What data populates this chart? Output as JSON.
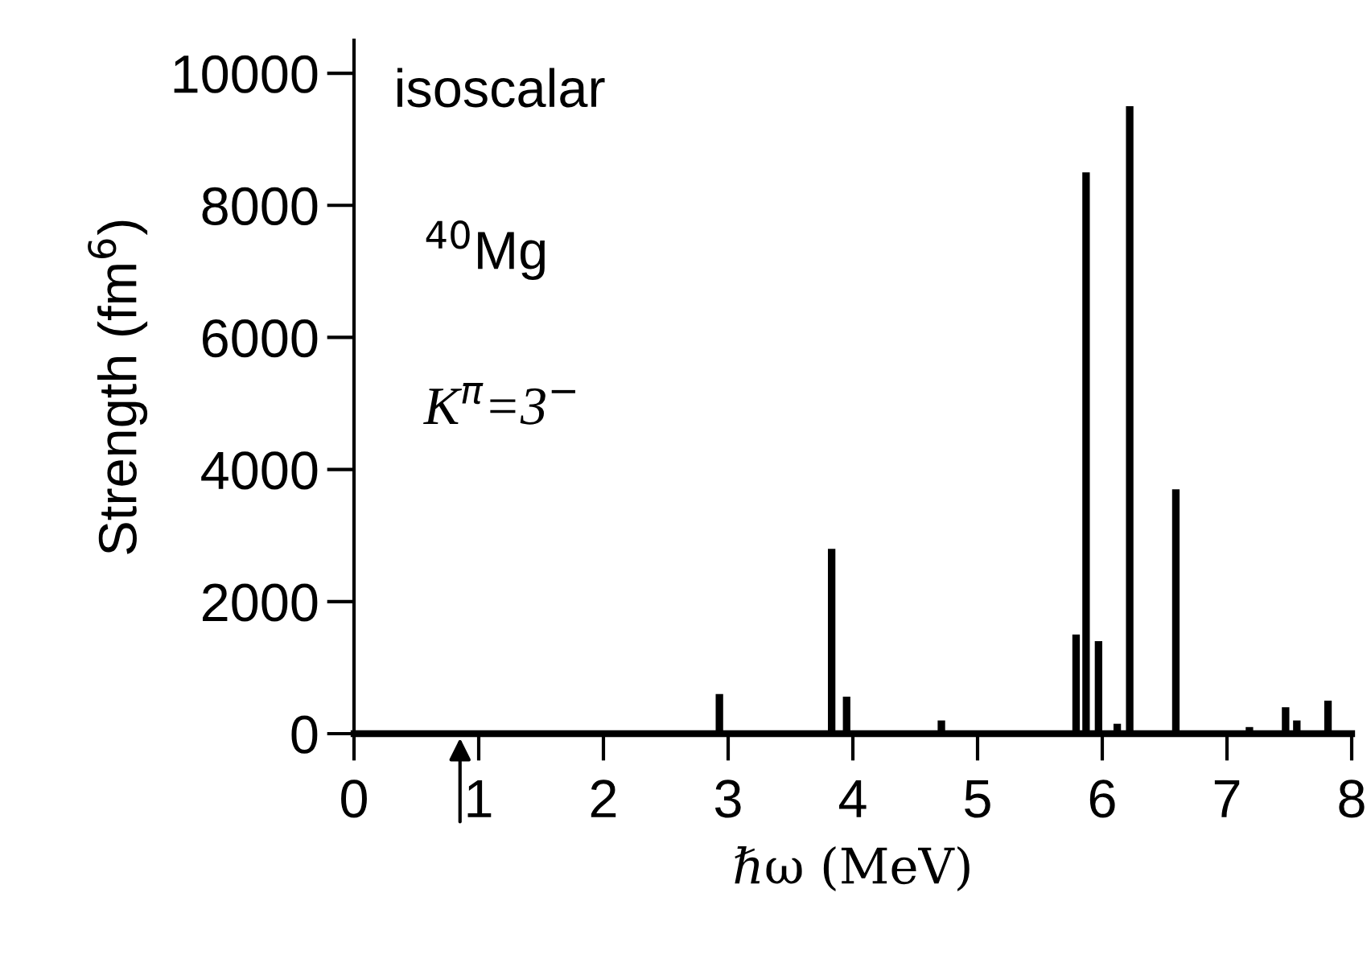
{
  "chart_data": {
    "type": "bar",
    "xlabel": "ℏω (MeV)",
    "ylabel": "Strength (fm$^{6}$)",
    "annotations": [
      "isoscalar",
      "$^{40}$Mg",
      "K$^{π}$=3$^{−}$"
    ],
    "x": [
      2.93,
      3.83,
      3.95,
      4.71,
      5.79,
      5.87,
      5.97,
      6.12,
      6.22,
      6.59,
      7.18,
      7.47,
      7.56,
      7.81
    ],
    "values": [
      600,
      2800,
      560,
      200,
      1500,
      8500,
      1400,
      150,
      9500,
      3700,
      100,
      400,
      200,
      500
    ],
    "color": "#000000",
    "xlim": [
      0,
      8
    ],
    "xticks": [
      0,
      1,
      2,
      3,
      4,
      5,
      6,
      7,
      8
    ],
    "ylim": [
      0,
      10500
    ],
    "yticks": [
      0,
      2000,
      4000,
      6000,
      8000,
      10000
    ],
    "grid": false,
    "legend": false
  }
}
